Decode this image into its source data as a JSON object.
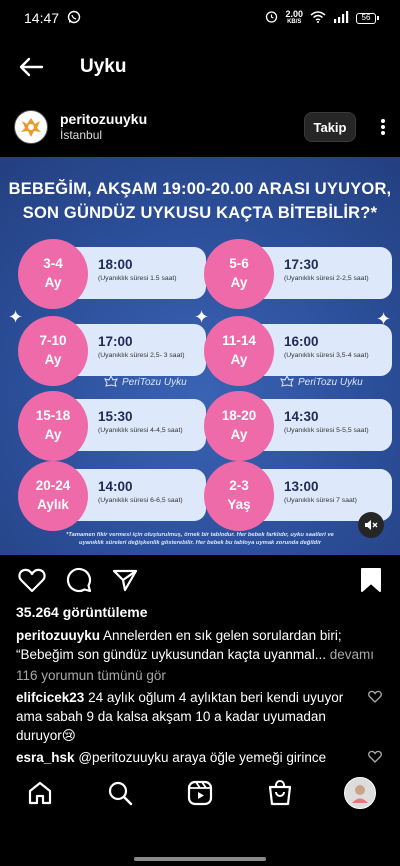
{
  "status_bar": {
    "time": "14:47",
    "net_speed": "2.00",
    "net_unit": "KB/S",
    "battery": "56"
  },
  "header": {
    "title": "Uyku"
  },
  "post": {
    "username": "peritozuuyku",
    "location": "İstanbul",
    "follow_label": "Takip",
    "image": {
      "title_line1": "BEBEĞİM, AKŞAM 19:00-20.00 ARASI UYUYOR,",
      "title_line2": "SON GÜNDÜZ UYKUSU KAÇTA BİTEBİLİR?*",
      "cards": [
        {
          "age_line1": "3-4",
          "age_line2": "Ay",
          "time": "18:00",
          "note": "(Uyanıklık süresi 1.5 saat)"
        },
        {
          "age_line1": "5-6",
          "age_line2": "Ay",
          "time": "17:30",
          "note": "(Uyanıklık süresi 2-2,5 saat)"
        },
        {
          "age_line1": "7-10",
          "age_line2": "Ay",
          "time": "17:00",
          "note": "(Uyanıklık süresi 2,5- 3 saat)"
        },
        {
          "age_line1": "11-14",
          "age_line2": "Ay",
          "time": "16:00",
          "note": "(Uyanıklık süresi 3,5-4 saat)"
        },
        {
          "age_line1": "15-18",
          "age_line2": "Ay",
          "time": "15:30",
          "note": "(Uyanıklık süresi 4-4,5 saat)"
        },
        {
          "age_line1": "18-20",
          "age_line2": "Ay",
          "time": "14:30",
          "note": "(Uyanıklık süresi 5-5,5 saat)"
        },
        {
          "age_line1": "20-24",
          "age_line2": "Aylık",
          "time": "14:00",
          "note": "(Uyanıklık süresi 6-6,5 saat)"
        },
        {
          "age_line1": "2-3",
          "age_line2": "Yaş",
          "time": "13:00",
          "note": "(Uyanıklık süresi 7 saat)"
        }
      ],
      "brand_label": "PeriTozu Uyku",
      "footnote_line1": "*Tamamen fikir vermesi için oluşturulmuş, örnek bir tablodur. Her bebek farklıdır, uyku saatleri ve",
      "footnote_line2": "uyanıklık süreleri değişkenlik gösterebilir. Her bebek bu tabloya uymak zorunda değildir"
    },
    "views": "35.264 görüntüleme",
    "caption_user": "peritozuuyku",
    "caption_line1": " Annelerden en sık gelen sorulardan biri;",
    "caption_line2": "“Bebeğim son gündüz uykusundan kaçta uyanmal...",
    "caption_more": " devamı",
    "all_comments": "116 yorumun tümünü gör",
    "comments": [
      {
        "user": "elifcicek23",
        "text": " 24 aylık oğlum 4 aylıktan beri kendi uyuyor ama sabah 9 da kalsa akşam 10 a kadar uyumadan duruyor😢"
      },
      {
        "user": "esra_hsk",
        "text": " @peritozuuyku araya öğle yemeği girince"
      }
    ]
  },
  "colors": {
    "background": "#000000",
    "image_blue": "#2c4f9a",
    "pink": "#ee6aa8",
    "card": "#dde9fb"
  },
  "icons": [
    "back-arrow-icon",
    "more-vertical-icon",
    "heart-icon",
    "comment-icon",
    "share-icon",
    "bookmark-icon",
    "mute-icon",
    "home-icon",
    "search-icon",
    "reels-icon",
    "shop-icon"
  ]
}
